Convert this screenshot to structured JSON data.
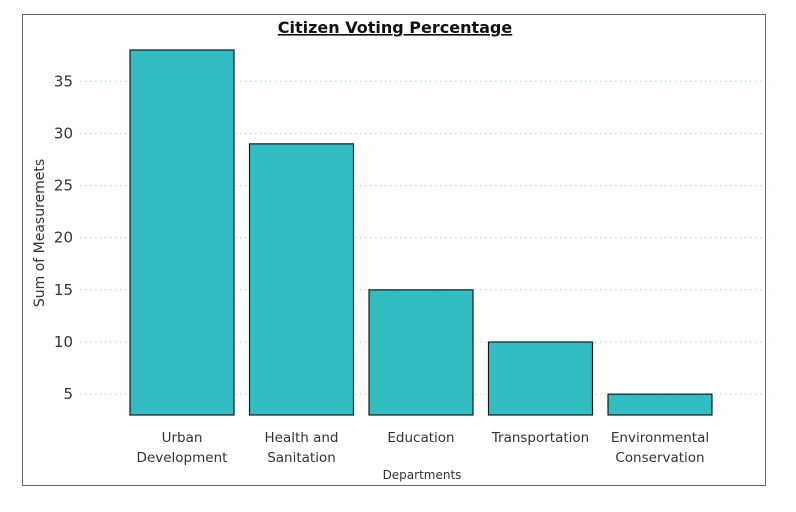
{
  "chart_data": {
    "type": "bar",
    "title": "Citizen Voting Percentage",
    "xlabel": "Departments",
    "ylabel": "Sum of Measuremets",
    "categories": [
      [
        "Urban",
        "Development"
      ],
      [
        "Health and",
        "Sanitation"
      ],
      [
        "Education"
      ],
      [
        "Transportation"
      ],
      [
        "Environmental",
        "Conservation"
      ]
    ],
    "values": [
      38,
      29,
      15,
      10,
      5
    ],
    "yticks": [
      5,
      10,
      15,
      20,
      25,
      30,
      35
    ],
    "ylim": [
      3,
      38
    ],
    "grid": true,
    "legend": "none",
    "colors": {
      "bar": "#31bdc2",
      "grid": "#9fd3ea"
    }
  }
}
